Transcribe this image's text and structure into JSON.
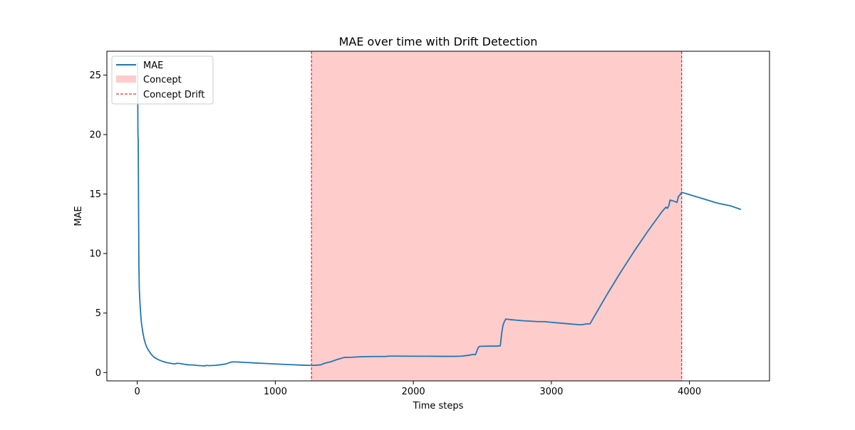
{
  "chart_data": {
    "type": "line",
    "title": "MAE over time with Drift Detection",
    "xlabel": "Time steps",
    "ylabel": "MAE",
    "xlim": [
      -220,
      4580
    ],
    "ylim": [
      -0.7,
      27.0
    ],
    "xticks": [
      0,
      1000,
      2000,
      3000,
      4000
    ],
    "yticks": [
      0,
      5,
      10,
      15,
      20,
      25
    ],
    "grid": false,
    "legend_placement": "top-left",
    "legend": {
      "mae": "MAE",
      "concept": "Concept",
      "drift": "Concept Drift"
    },
    "colors": {
      "mae": "#1f77b4",
      "concept": "#ffcccc",
      "drift": "#e00000"
    },
    "concept_region": [
      1262,
      3944
    ],
    "drift_lines": [
      1262,
      3944
    ],
    "series": [
      {
        "name": "MAE",
        "x": [
          0,
          1,
          3,
          5,
          7,
          9,
          12,
          15,
          20,
          25,
          30,
          40,
          50,
          60,
          70,
          80,
          100,
          120,
          150,
          180,
          210,
          240,
          270,
          290,
          310,
          340,
          370,
          400,
          430,
          460,
          490,
          500,
          520,
          560,
          600,
          640,
          660,
          680,
          700,
          740,
          780,
          820,
          860,
          900,
          1000,
          1100,
          1200,
          1262,
          1300,
          1330,
          1350,
          1370,
          1400,
          1450,
          1500,
          1550,
          1600,
          1700,
          1800,
          1820,
          1900,
          2000,
          2100,
          2200,
          2300,
          2350,
          2400,
          2430,
          2450,
          2470,
          2480,
          2550,
          2600,
          2630,
          2640,
          2650,
          2660,
          2670,
          2700,
          2800,
          2850,
          2900,
          2950,
          3000,
          3100,
          3200,
          3220,
          3250,
          3280,
          3300,
          3400,
          3500,
          3600,
          3700,
          3800,
          3830,
          3840,
          3850,
          3860,
          3900,
          3910,
          3920,
          3930,
          3944,
          4000,
          4100,
          4200,
          4300,
          4370
        ],
        "y": [
          25.9,
          26.0,
          25.5,
          20.0,
          19.5,
          15.0,
          9.0,
          7.0,
          5.8,
          4.9,
          4.2,
          3.4,
          2.8,
          2.4,
          2.1,
          1.9,
          1.55,
          1.3,
          1.1,
          0.95,
          0.85,
          0.78,
          0.72,
          0.78,
          0.76,
          0.7,
          0.65,
          0.64,
          0.6,
          0.58,
          0.56,
          0.6,
          0.58,
          0.6,
          0.65,
          0.72,
          0.8,
          0.88,
          0.9,
          0.88,
          0.85,
          0.83,
          0.8,
          0.78,
          0.72,
          0.67,
          0.62,
          0.6,
          0.62,
          0.65,
          0.75,
          0.82,
          0.9,
          1.1,
          1.27,
          1.28,
          1.32,
          1.35,
          1.35,
          1.38,
          1.38,
          1.37,
          1.37,
          1.36,
          1.36,
          1.38,
          1.45,
          1.52,
          1.5,
          2.1,
          2.2,
          2.22,
          2.22,
          2.25,
          3.3,
          4.0,
          4.3,
          4.5,
          4.45,
          4.35,
          4.32,
          4.28,
          4.28,
          4.22,
          4.12,
          4.02,
          4.02,
          4.08,
          4.1,
          4.5,
          6.5,
          8.4,
          10.2,
          11.9,
          13.5,
          13.9,
          13.8,
          14.0,
          14.5,
          14.35,
          14.3,
          14.8,
          14.9,
          15.15,
          14.95,
          14.6,
          14.25,
          14.0,
          13.72
        ]
      }
    ]
  }
}
